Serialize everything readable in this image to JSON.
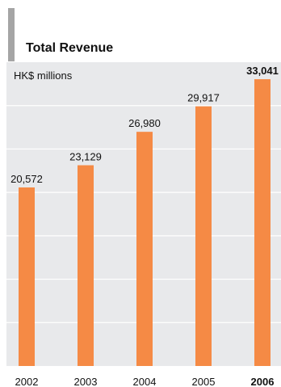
{
  "chart_data": {
    "type": "bar",
    "title": "Total Revenue",
    "ylabel": "HK$ millions",
    "categories": [
      "2002",
      "2003",
      "2004",
      "2005",
      "2006"
    ],
    "values": [
      20572,
      23129,
      26980,
      29917,
      33041
    ],
    "value_labels": [
      "20,572",
      "23,129",
      "26,980",
      "29,917",
      "33,041"
    ],
    "highlight_index": 4,
    "ylim": [
      0,
      35000
    ],
    "grid": true,
    "bar_color": "#f58a45",
    "grid_color": "#ffffff",
    "panel_color": "#e8e9eb",
    "accent_color": "#a5a5a5"
  }
}
